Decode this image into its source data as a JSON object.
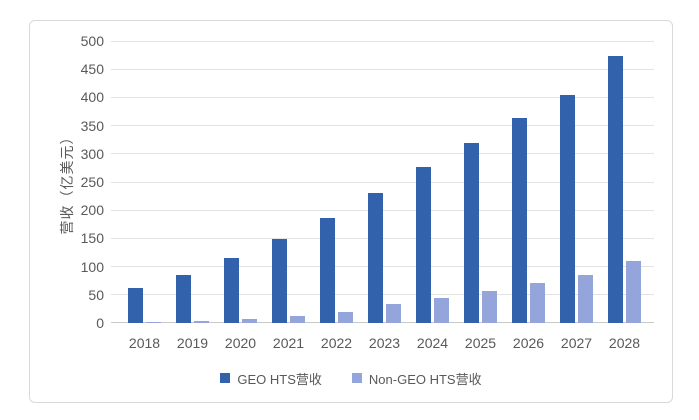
{
  "chart_data": {
    "type": "bar",
    "title": "",
    "categories": [
      "2018",
      "2019",
      "2020",
      "2021",
      "2022",
      "2023",
      "2024",
      "2025",
      "2026",
      "2027",
      "2028"
    ],
    "series": [
      {
        "name": "GEO HTS营收",
        "key": "geo-hts",
        "color": "#3262AB",
        "values": [
          62,
          85,
          116,
          149,
          186,
          230,
          276,
          320,
          364,
          405,
          474
        ]
      },
      {
        "name": "Non-GEO HTS营收",
        "key": "non-geo-hts",
        "color": "#93A5DA",
        "values": [
          2,
          3,
          7,
          13,
          20,
          34,
          45,
          57,
          71,
          86,
          110
        ]
      }
    ],
    "xlabel": "",
    "ylabel": "营收（亿美元）",
    "ylim": [
      0,
      500
    ],
    "yticks": [
      0,
      50,
      100,
      150,
      200,
      250,
      300,
      350,
      400,
      450,
      500
    ],
    "grid": true,
    "legend_position": "bottom"
  },
  "colors": {
    "axis_text": "#595959",
    "gridline": "#E2E2E2",
    "baseline": "#C9C9C9",
    "frame_border": "#D9D9D9",
    "background": "#FFFFFF"
  }
}
